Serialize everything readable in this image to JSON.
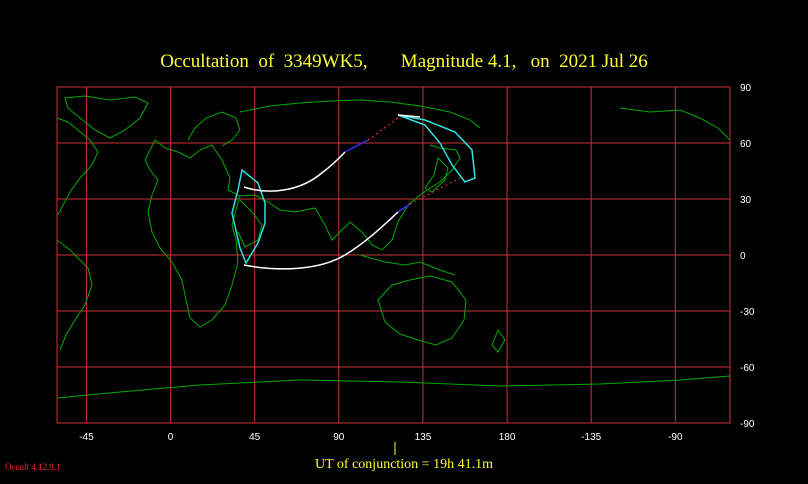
{
  "title": "Occultation  of  3349WK5,       Magnitude 4.1,   on  2021 Jul 26",
  "x_ticks": [
    "-45",
    "0",
    "45",
    "90",
    "135",
    "180",
    "-135",
    "-90"
  ],
  "y_ticks": [
    "90",
    "60",
    "30",
    "0",
    "-30",
    "-60",
    "-90"
  ],
  "conjunction_label": "UT of conjunction = 19h 41.1m",
  "version": "Occult 4.12.9.1",
  "colors": {
    "background": "#000000",
    "title": "#ffff33",
    "grid": "#cc3333",
    "coastline": "#00aa00",
    "central_line": "#ffffff",
    "limit_lines": "#33e0e0",
    "night_segment": "#3333ff",
    "dotted_extension": "#ff3333"
  }
}
